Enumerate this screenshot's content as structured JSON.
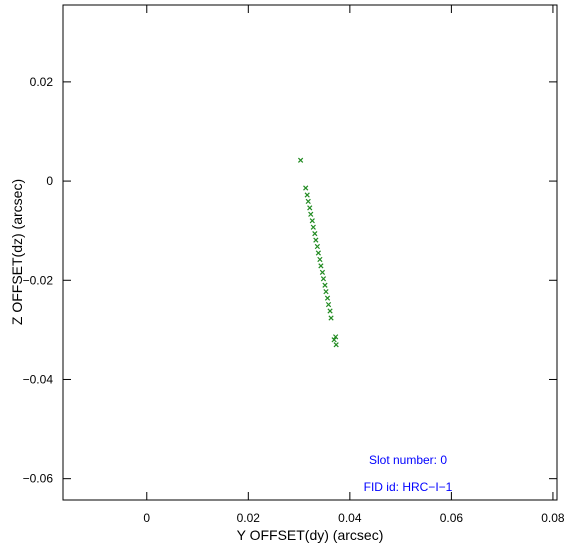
{
  "chart_data": {
    "type": "scatter",
    "xlabel": "Y OFFSET(dy) (arcsec)",
    "ylabel": "Z OFFSET(dz) (arcsec)",
    "annotations": [
      "Slot number: 0",
      "FID id: HRC−I−1"
    ],
    "xlim": [
      -0.0165,
      0.0808
    ],
    "ylim": [
      -0.0643,
      0.0355
    ],
    "xticks": [
      0,
      0.02,
      0.04,
      0.06,
      0.08
    ],
    "yticks": [
      {
        "value": -0.06,
        "label": "−0.06"
      },
      {
        "value": -0.04,
        "label": "−0.04"
      },
      {
        "value": -0.02,
        "label": "−0.02"
      },
      0,
      0.02
    ],
    "color": "#228b22",
    "x": [
      0.0303,
      0.0313,
      0.0316,
      0.0318,
      0.0321,
      0.0323,
      0.0326,
      0.0328,
      0.0331,
      0.0333,
      0.0336,
      0.0338,
      0.0341,
      0.0343,
      0.0346,
      0.0348,
      0.0351,
      0.0353,
      0.0356,
      0.0358,
      0.0361,
      0.0363,
      0.0372,
      0.0369,
      0.0373
    ],
    "y": [
      0.0042,
      -0.0014,
      -0.0028,
      -0.0041,
      -0.0054,
      -0.0067,
      -0.008,
      -0.0093,
      -0.0106,
      -0.0119,
      -0.0132,
      -0.0145,
      -0.0158,
      -0.0171,
      -0.0184,
      -0.0197,
      -0.021,
      -0.0223,
      -0.0236,
      -0.0249,
      -0.0262,
      -0.0276,
      -0.0314,
      -0.032,
      -0.033
    ]
  }
}
